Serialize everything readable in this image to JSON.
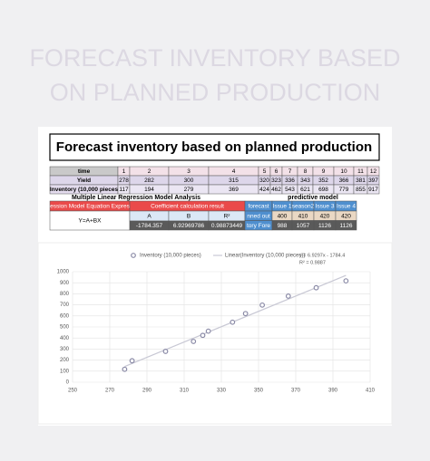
{
  "banner": {
    "title_lines": [
      "FORECAST INVENTORY BASED",
      "ON PLANNED PRODUCTION"
    ]
  },
  "sheet": {
    "title": "Forecast inventory based on planned production",
    "table": {
      "rows": [
        [
          "time",
          1,
          2,
          3,
          4,
          5,
          6,
          7,
          8,
          9,
          10,
          11,
          12
        ],
        [
          "Yield",
          278,
          282,
          300,
          315,
          320,
          323,
          336,
          343,
          352,
          366,
          381,
          397
        ],
        [
          "Inventory (10,000 pieces",
          117,
          194,
          279,
          369,
          424,
          462,
          543,
          621,
          698,
          779,
          855,
          917
        ]
      ]
    },
    "analysis_label": "Multiple Linear Regression Model Analysis",
    "predictive_label": "predictive model",
    "regression": {
      "equation_label": "ession Model Equation Expres",
      "equation": "Y=A+BX",
      "coef_header": "Coefficient calculation result",
      "coef_names": [
        "A",
        "B",
        "R²"
      ],
      "coef_values": [
        -1784.357,
        6.92969786,
        0.98873449
      ]
    },
    "prediction": {
      "header": [
        "forecast",
        "Issue 1",
        "season2",
        "Issue 3",
        "Issue 4"
      ],
      "rows": [
        [
          "nned out",
          400,
          410,
          420,
          420
        ],
        [
          "tory Fore",
          988,
          1057,
          1126,
          1126
        ]
      ]
    }
  },
  "chart_data": {
    "type": "scatter",
    "series": [
      {
        "name": "Inventory (10,000 pieces)",
        "color": "#8a8aa6",
        "x": [
          278,
          282,
          300,
          315,
          320,
          323,
          336,
          343,
          352,
          366,
          381,
          397
        ],
        "values": [
          117,
          194,
          279,
          369,
          424,
          462,
          543,
          621,
          698,
          779,
          855,
          917
        ]
      }
    ],
    "trendline": {
      "name": "Linear(Inventory (10,000 pieces))",
      "color": "#c8c8d4",
      "equation": "y = 6.9297x - 1784.4",
      "r_squared": "R² = 0.9887"
    },
    "xlim": [
      250,
      410
    ],
    "xticks": [
      250,
      270,
      290,
      310,
      330,
      350,
      370,
      390,
      410
    ],
    "ylim": [
      0,
      1000
    ],
    "yticks": [
      0,
      100,
      200,
      300,
      400,
      500,
      600,
      700,
      800,
      900,
      1000
    ],
    "grid": true
  }
}
